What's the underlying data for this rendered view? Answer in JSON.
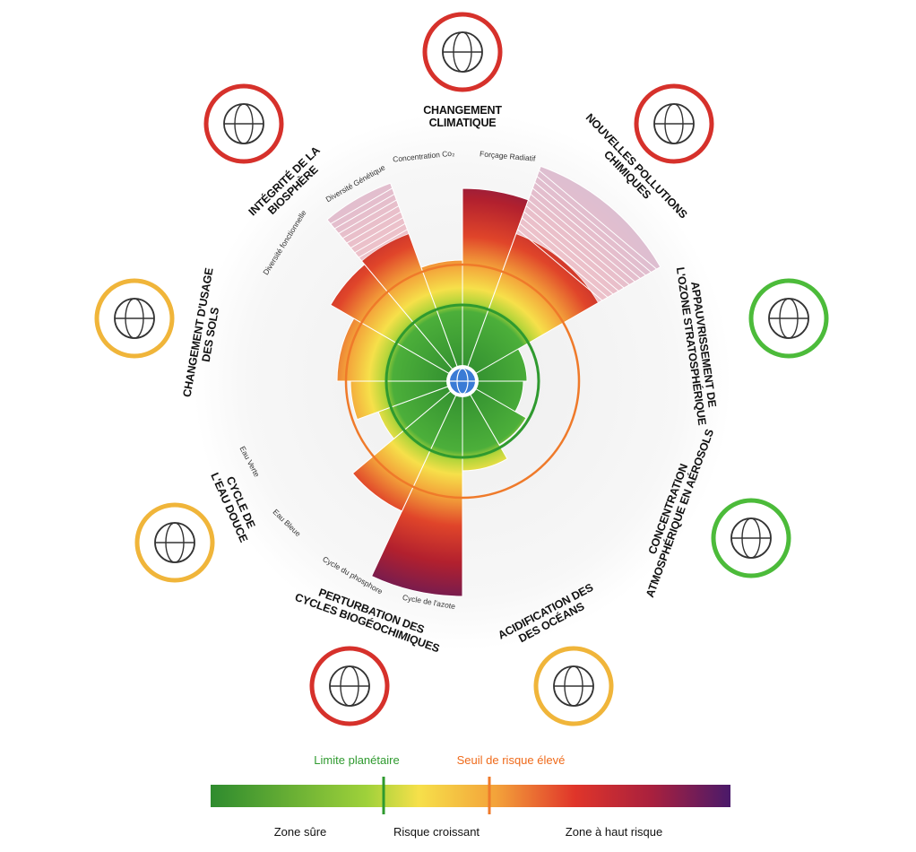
{
  "boundaries": [
    {
      "lines": [
        "CHANGEMENT",
        "CLIMATIQUE"
      ],
      "sublabels": [
        "Concentration Co₂",
        "Forçage Radiatif"
      ]
    },
    {
      "lines": [
        "NOUVELLES POLLUTIONS",
        "CHIMIQUES"
      ],
      "sublabels": []
    },
    {
      "lines": [
        "APPAUVRISSEMENT DE",
        "L'OZONE STRATOSPHÉRIQUE"
      ],
      "sublabels": []
    },
    {
      "lines": [
        "CONCENTRATION",
        "ATMOSPHÉRIQUE EN AÉROSOLS"
      ],
      "sublabels": []
    },
    {
      "lines": [
        "ACIDIFICATION DES",
        "DES OCÉANS"
      ],
      "sublabels": []
    },
    {
      "lines": [
        "PERTURBATION DES",
        "CYCLES BIOGÉOCHIMIQUES"
      ],
      "sublabels": [
        "Cycle du phosphore",
        "Cycle de l'azote"
      ]
    },
    {
      "lines": [
        "CYCLE DE",
        "L'EAU DOUCE"
      ],
      "sublabels": [
        "Eau Verte",
        "Eau Bleue"
      ]
    },
    {
      "lines": [
        "CHANGEMENT D'USAGE",
        "DES SOLS"
      ],
      "sublabels": []
    },
    {
      "lines": [
        "INTÉGRITÉ DE LA",
        "BIOSPHÈRE"
      ],
      "sublabels": [
        "Diversité fonctionnelle",
        "Diversité Génétique"
      ]
    }
  ],
  "legend": {
    "limit": "Limite planétaire",
    "threshold": "Seuil de risque élevé",
    "zones": [
      "Zone sûre",
      "Risque croissant",
      "Zone à haut risque"
    ]
  }
}
